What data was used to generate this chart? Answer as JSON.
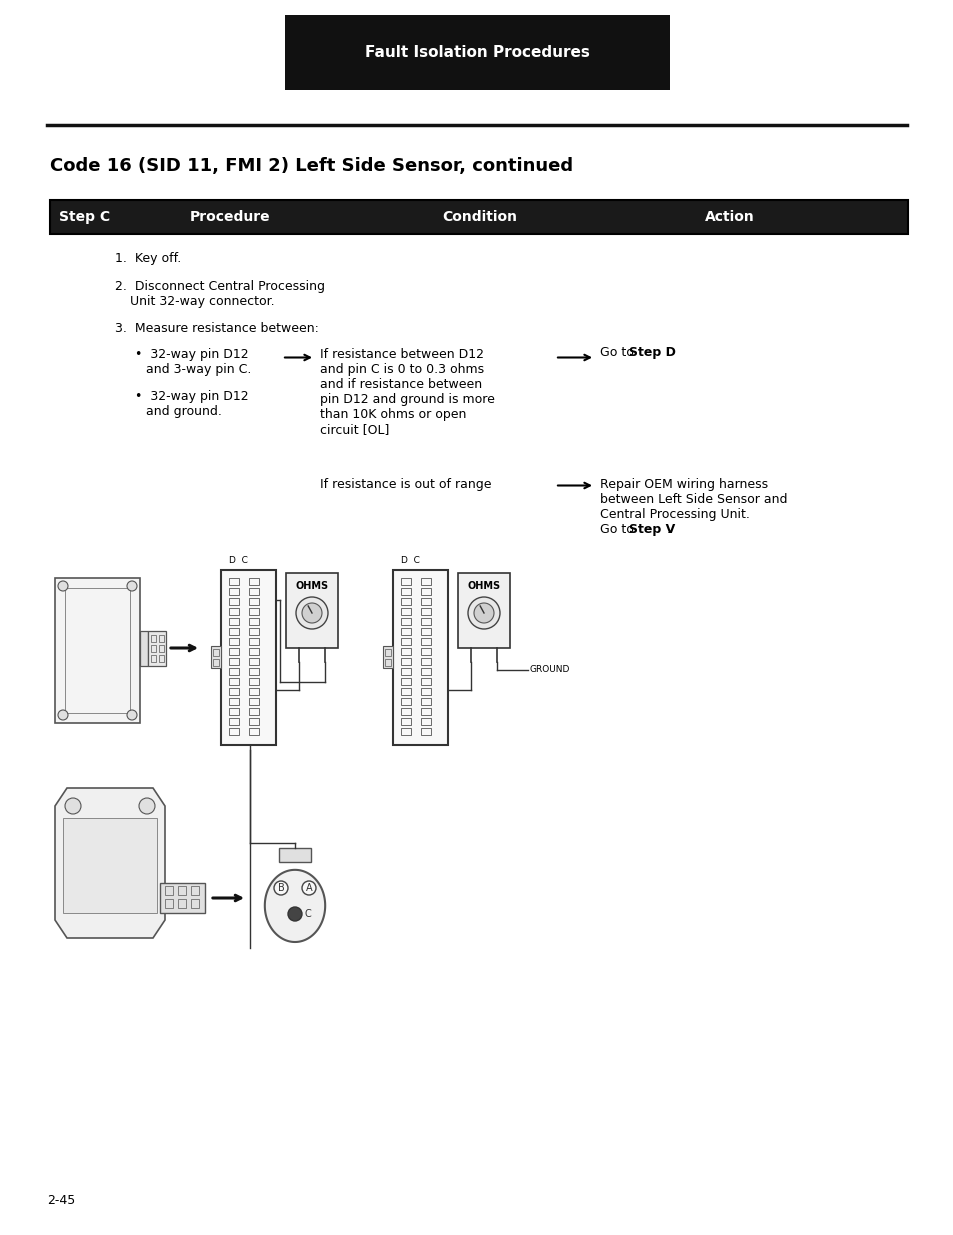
{
  "page_bg": "#ffffff",
  "header_bg": "#111111",
  "header_text": "Fault Isolation Procedures",
  "header_text_color": "#ffffff",
  "header_font_size": 11,
  "section_title": "Code 16 (SID 11, FMI 2) Left Side Sensor, continued",
  "section_title_font_size": 13,
  "table_header_bg": "#1a1a1a",
  "table_header_text_color": "#ffffff",
  "table_header_font_size": 10,
  "table_col_step_c": "Step C",
  "table_col_procedure": "Procedure",
  "table_col_condition": "Condition",
  "table_col_action": "Action",
  "page_number": "2-45",
  "font_size_body": 9,
  "body_color": "#000000"
}
